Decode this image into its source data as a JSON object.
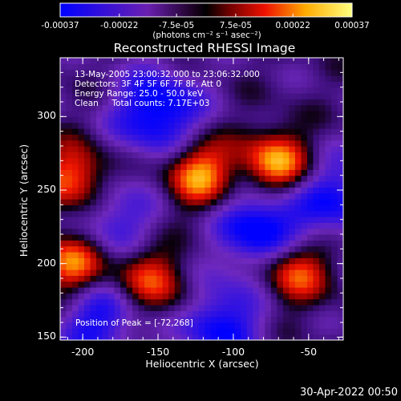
{
  "colorbar": {
    "tick_labels": [
      "-0.00037",
      "-0.00022",
      "-7.5e-05",
      "7.5e-05",
      "0.00022",
      "0.00037"
    ],
    "unit_label": "(photons cm⁻² s⁻¹ asec⁻²)",
    "range": [
      -0.00037,
      0.00037
    ]
  },
  "plot": {
    "title": "Reconstructed RHESSI Image",
    "annotations": [
      "13-May-2005 23:00:32.000 to 23:06:32.000",
      "Detectors: 3F 4F 5F 6F 7F 8F, Att 0",
      "Energy Range: 25.0 - 50.0 keV",
      "Clean     Total counts: 7.17E+03"
    ],
    "peak_label": "Position of Peak = [-72,268]",
    "xlabel": "Heliocentric X (arcsec)",
    "ylabel": "Heliocentric Y (arcsec)",
    "xticks": [
      "-200",
      "-150",
      "-100",
      "-50"
    ],
    "yticks": [
      "300",
      "250",
      "200",
      "150"
    ]
  },
  "chart_data": {
    "type": "heatmap",
    "title": "Reconstructed RHESSI Image",
    "xlabel": "Heliocentric X (arcsec)",
    "ylabel": "Heliocentric Y (arcsec)",
    "xlim": [
      -215,
      -27
    ],
    "ylim": [
      148,
      340
    ],
    "zlim": [
      -0.00037,
      0.00037
    ],
    "peak": [
      -72,
      268
    ],
    "bright_sources": [
      {
        "x": -72,
        "y": 268,
        "value": 0.00037
      },
      {
        "x": -123,
        "y": 262,
        "value": 0.00035
      },
      {
        "x": -205,
        "y": 258,
        "value": 0.00033
      },
      {
        "x": -207,
        "y": 200,
        "value": 0.00034
      },
      {
        "x": -160,
        "y": 193,
        "value": 0.00022
      },
      {
        "x": -60,
        "y": 197,
        "value": 0.00033
      },
      {
        "x": -140,
        "y": 178,
        "value": 0.00012
      }
    ],
    "dark_regions": [
      {
        "x": -150,
        "y": 303,
        "value": -0.00035
      },
      {
        "x": -80,
        "y": 224,
        "value": -0.00037
      },
      {
        "x": -180,
        "y": 230,
        "value": -0.00022
      },
      {
        "x": -110,
        "y": 160,
        "value": -0.0003
      },
      {
        "x": -30,
        "y": 245,
        "value": -0.00025
      },
      {
        "x": -190,
        "y": 162,
        "value": -0.00026
      }
    ]
  },
  "timestamp": "30-Apr-2022 00:50"
}
